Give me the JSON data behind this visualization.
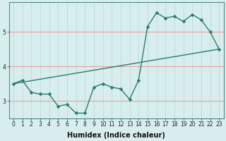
{
  "xlabel": "Humidex (Indice chaleur)",
  "x_values": [
    0,
    1,
    2,
    3,
    4,
    5,
    6,
    7,
    8,
    9,
    10,
    11,
    12,
    13,
    14,
    15,
    16,
    17,
    18,
    19,
    20,
    21,
    22,
    23
  ],
  "line1_y": [
    3.5,
    3.6,
    3.25,
    3.2,
    3.2,
    2.85,
    2.9,
    2.65,
    2.65,
    3.4,
    3.5,
    3.4,
    3.35,
    3.05,
    3.6,
    5.15,
    5.55,
    5.4,
    5.45,
    5.3,
    5.5,
    5.35,
    5.0,
    4.5
  ],
  "trend_x": [
    0,
    23
  ],
  "trend_y": [
    3.5,
    4.5
  ],
  "line_color": "#2a7a6a",
  "bg_color": "#d8eeee",
  "grid_color_x": "#b8d4d4",
  "grid_color_y": "#e8a0a0",
  "ylim": [
    2.5,
    5.85
  ],
  "xlim": [
    -0.5,
    23.5
  ],
  "yticks": [
    3,
    4,
    5
  ],
  "xtick_labels": [
    "0",
    "1",
    "2",
    "3",
    "4",
    "5",
    "6",
    "7",
    "8",
    "9",
    "10",
    "11",
    "12",
    "13",
    "14",
    "15",
    "16",
    "17",
    "18",
    "19",
    "20",
    "21",
    "22",
    "23"
  ],
  "marker_size": 2.5,
  "line_width": 1.0,
  "tick_fontsize": 5.5,
  "label_fontsize": 7,
  "label_fontweight": "bold"
}
